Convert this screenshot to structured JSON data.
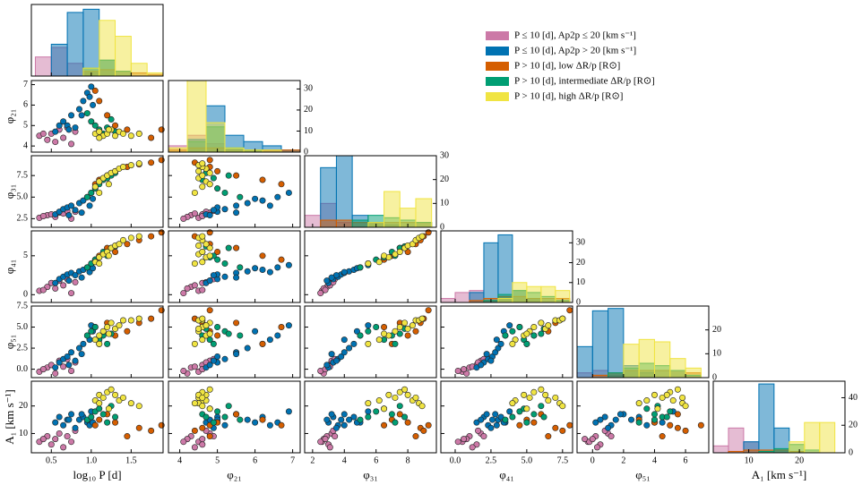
{
  "chart_data": {
    "type": "corner",
    "legend": "upper right",
    "variables": [
      {
        "label": "log₁₀ P [d]",
        "lim": [
          0.25,
          1.9
        ],
        "ticks": [
          0.5,
          {
            "value": 1,
            "label": "1.0"
          },
          1.5
        ],
        "hist": {
          "bins": [
            0.3,
            0.5,
            0.7,
            0.9,
            1.1,
            1.3,
            1.5,
            1.7,
            1.9
          ],
          "countlim": [
            0,
            45
          ],
          "counts": [
            [
              12,
              18,
              8,
              2,
              0,
              0,
              0,
              0
            ],
            [
              0,
              20,
              40,
              42,
              10,
              0,
              0,
              0
            ],
            [
              0,
              0,
              0,
              3,
              4,
              3,
              2,
              1
            ],
            [
              0,
              0,
              0,
              5,
              10,
              3,
              0,
              0
            ],
            [
              0,
              0,
              0,
              5,
              35,
              25,
              8,
              2
            ]
          ]
        }
      },
      {
        "label": "φ₂₁",
        "lim": [
          3.7,
          7.2
        ],
        "ticks": [
          4,
          5,
          6,
          7
        ],
        "hist": {
          "bins": [
            3.7,
            4.2,
            4.7,
            5.2,
            5.7,
            6.2,
            6.7,
            7.2
          ],
          "countlim": [
            0,
            34
          ],
          "countticks": [
            0,
            10,
            20,
            30
          ],
          "counts": [
            [
              3,
              8,
              4,
              0,
              0,
              0,
              0
            ],
            [
              0,
              6,
              22,
              8,
              5,
              3,
              1
            ],
            [
              1,
              2,
              2,
              1,
              1,
              1,
              1
            ],
            [
              0,
              5,
              12,
              2,
              1,
              0,
              0
            ],
            [
              2,
              34,
              14,
              2,
              1,
              1,
              0
            ]
          ]
        }
      },
      {
        "label": "φ₃₁",
        "lim": [
          1.5,
          9.8
        ],
        "ticks": [
          2,
          4,
          6,
          8
        ],
        "yticks": [
          2.5,
          {
            "value": 5,
            "label": "5.0"
          },
          7.5
        ],
        "hist": {
          "bins": [
            1.5,
            2.5,
            3.5,
            4.5,
            5.5,
            6.5,
            7.5,
            8.5,
            9.5
          ],
          "countlim": [
            0,
            30
          ],
          "countticks": [
            0,
            10,
            20,
            30
          ],
          "counts": [
            [
              5,
              10,
              2,
              0,
              0,
              0,
              0,
              0
            ],
            [
              0,
              25,
              30,
              5,
              2,
              1,
              0,
              0
            ],
            [
              0,
              3,
              3,
              2,
              2,
              2,
              2,
              2
            ],
            [
              0,
              0,
              0,
              3,
              5,
              4,
              3,
              2
            ],
            [
              0,
              0,
              0,
              0,
              2,
              15,
              8,
              12
            ]
          ]
        }
      },
      {
        "label": "φ₄₁",
        "lim": [
          -1,
          8.2
        ],
        "ticks": [
          {
            "value": 0,
            "label": "0.0"
          },
          2.5,
          {
            "value": 5,
            "label": "5.0"
          },
          7.5
        ],
        "yticks": [
          0,
          5
        ],
        "hist": {
          "bins": [
            -1,
            0,
            1,
            2,
            3,
            4,
            5,
            6,
            7,
            8
          ],
          "countlim": [
            0,
            36
          ],
          "countticks": [
            0,
            10,
            20,
            30
          ],
          "counts": [
            [
              2,
              5,
              6,
              1,
              0,
              0,
              0,
              0,
              0
            ],
            [
              0,
              0,
              5,
              30,
              34,
              6,
              2,
              0,
              0
            ],
            [
              0,
              0,
              1,
              2,
              3,
              3,
              2,
              2,
              2
            ],
            [
              0,
              0,
              0,
              1,
              4,
              6,
              5,
              3,
              1
            ],
            [
              0,
              0,
              0,
              0,
              2,
              10,
              8,
              8,
              6
            ]
          ]
        }
      },
      {
        "label": "φ₅₁",
        "lim": [
          -1,
          7.5
        ],
        "ticks": [
          0,
          2,
          4,
          6
        ],
        "yticks": [
          {
            "value": 0,
            "label": "0.0"
          },
          2.5,
          {
            "value": 5,
            "label": "5.0"
          },
          7.5
        ],
        "hist": {
          "bins": [
            -1,
            0,
            1,
            2,
            3,
            4,
            5,
            6,
            7
          ],
          "countlim": [
            0,
            30
          ],
          "countticks": [
            0,
            10,
            20
          ],
          "counts": [
            [
              2,
              3,
              1,
              0,
              0,
              0,
              0,
              0
            ],
            [
              13,
              28,
              29,
              5,
              2,
              0,
              0,
              0
            ],
            [
              0,
              1,
              2,
              3,
              3,
              3,
              3,
              2
            ],
            [
              0,
              0,
              2,
              4,
              6,
              5,
              3,
              1
            ],
            [
              0,
              0,
              0,
              14,
              16,
              15,
              8,
              4
            ]
          ]
        }
      },
      {
        "label": "A₁ [km s⁻¹]",
        "lim": [
          3,
          29
        ],
        "ticks": [
          10,
          20
        ],
        "hist": {
          "bins": [
            3,
            6,
            9,
            12,
            15,
            18,
            21,
            24,
            27
          ],
          "countlim": [
            0,
            52
          ],
          "countticks": [
            0,
            20,
            40
          ],
          "counts": [
            [
              5,
              18,
              8,
              0,
              0,
              0,
              0,
              0
            ],
            [
              0,
              0,
              8,
              50,
              18,
              0,
              0,
              0
            ],
            [
              0,
              1,
              2,
              2,
              2,
              1,
              0,
              0
            ],
            [
              0,
              0,
              0,
              1,
              3,
              6,
              2,
              0
            ],
            [
              0,
              0,
              0,
              0,
              0,
              8,
              22,
              22
            ]
          ]
        }
      }
    ],
    "groups": [
      {
        "name": "P ≤ 10 [d],  Ap2p ≤ 20 [km s⁻¹]",
        "color": "#cc79a7",
        "points": [
          [
            0.35,
            4.5,
            2.6,
            0.5,
            -0.3,
            7
          ],
          [
            0.45,
            4.3,
            2.9,
            1.0,
            0.2,
            9
          ],
          [
            0.5,
            4.6,
            3.0,
            1.5,
            0.5,
            6
          ],
          [
            0.55,
            4.2,
            2.7,
            0.8,
            -0.5,
            8
          ],
          [
            0.6,
            4.8,
            3.2,
            1.8,
            1.0,
            10
          ],
          [
            0.65,
            4.4,
            3.1,
            1.2,
            0.3,
            5
          ],
          [
            0.7,
            4.9,
            3.4,
            2.0,
            1.2,
            9
          ],
          [
            0.75,
            4.1,
            2.5,
            0.2,
            -0.2,
            7
          ],
          [
            0.8,
            4.7,
            3.3,
            1.6,
            0.8,
            11
          ],
          [
            0.4,
            4.6,
            2.8,
            0.6,
            0.0,
            8
          ]
        ]
      },
      {
        "name": "P ≤ 10 [d],  Ap2p > 20 [km s⁻¹]",
        "color": "#0072b2",
        "points": [
          [
            0.55,
            4.7,
            3.0,
            1.5,
            0.2,
            14
          ],
          [
            0.6,
            5.0,
            3.3,
            2.0,
            0.8,
            16
          ],
          [
            0.65,
            5.2,
            3.6,
            2.3,
            1.2,
            13
          ],
          [
            0.7,
            5.0,
            3.8,
            2.6,
            1.5,
            15
          ],
          [
            0.75,
            5.5,
            4.0,
            2.8,
            2.0,
            17
          ],
          [
            0.8,
            4.9,
            3.5,
            2.5,
            1.0,
            12
          ],
          [
            0.85,
            5.8,
            4.3,
            3.0,
            2.5,
            15
          ],
          [
            0.9,
            6.2,
            4.6,
            3.2,
            3.0,
            16
          ],
          [
            0.95,
            6.6,
            5.0,
            3.5,
            4.0,
            14
          ],
          [
            1.0,
            6.9,
            5.5,
            3.8,
            5.2,
            18
          ],
          [
            0.98,
            6.4,
            4.0,
            2.9,
            3.5,
            13
          ],
          [
            0.72,
            4.8,
            2.9,
            1.8,
            0.5,
            15
          ],
          [
            0.88,
            5.5,
            3.2,
            2.2,
            1.8,
            17
          ],
          [
            1.02,
            6.0,
            4.8,
            3.4,
            4.5,
            14
          ]
        ]
      },
      {
        "name": "P > 10 [d],  low ΔR/p [R⊙]",
        "color": "#d55e00",
        "points": [
          [
            1.05,
            6.7,
            6.5,
            4.5,
            5.0,
            13
          ],
          [
            1.1,
            6.2,
            7.0,
            5.0,
            3.0,
            15
          ],
          [
            1.3,
            5.0,
            8.0,
            5.5,
            4.0,
            14
          ],
          [
            1.45,
            4.8,
            8.5,
            6.5,
            4.5,
            9
          ],
          [
            1.6,
            4.6,
            8.8,
            7.0,
            5.5,
            12
          ],
          [
            1.75,
            4.4,
            9.0,
            7.5,
            6.0,
            11
          ],
          [
            1.88,
            4.8,
            9.3,
            8.0,
            7.0,
            13
          ],
          [
            1.2,
            5.5,
            7.5,
            6.0,
            5.5,
            17
          ]
        ]
      },
      {
        "name": "P > 10 [d],  intermediate ΔR/p [R⊙]",
        "color": "#009e73",
        "points": [
          [
            0.95,
            5.6,
            5.0,
            3.5,
            4.0,
            15
          ],
          [
            1.0,
            5.2,
            5.5,
            4.0,
            4.5,
            16
          ],
          [
            1.05,
            5.0,
            6.0,
            4.5,
            5.0,
            18
          ],
          [
            1.1,
            4.8,
            6.5,
            4.8,
            3.5,
            19
          ],
          [
            1.15,
            4.6,
            7.0,
            5.5,
            4.0,
            17
          ],
          [
            1.2,
            4.9,
            7.2,
            5.0,
            3.0,
            14
          ],
          [
            1.25,
            5.3,
            7.5,
            6.0,
            4.2,
            20
          ],
          [
            1.3,
            4.7,
            7.8,
            6.2,
            4.8,
            16
          ]
        ]
      },
      {
        "name": "P > 10 [d],  high ΔR/p [R⊙]",
        "color": "#f0e442",
        "points": [
          [
            1.05,
            4.6,
            6.2,
            4.2,
            3.5,
            22
          ],
          [
            1.1,
            4.7,
            6.8,
            4.8,
            4.0,
            24
          ],
          [
            1.15,
            4.5,
            7.2,
            5.2,
            4.5,
            23
          ],
          [
            1.2,
            4.6,
            7.5,
            5.5,
            5.0,
            25
          ],
          [
            1.25,
            4.8,
            7.8,
            6.0,
            5.5,
            26
          ],
          [
            1.3,
            4.5,
            8.0,
            6.3,
            4.8,
            24
          ],
          [
            1.35,
            4.7,
            8.3,
            6.5,
            5.2,
            22
          ],
          [
            1.4,
            4.6,
            8.5,
            7.0,
            5.8,
            23
          ],
          [
            1.5,
            4.5,
            8.7,
            7.3,
            5.8,
            21
          ],
          [
            1.6,
            4.6,
            8.9,
            7.5,
            6.0,
            20
          ],
          [
            1.1,
            4.4,
            5.5,
            4.0,
            3.0,
            21
          ],
          [
            1.22,
            4.8,
            6.5,
            5.0,
            4.2,
            19
          ]
        ]
      }
    ]
  }
}
